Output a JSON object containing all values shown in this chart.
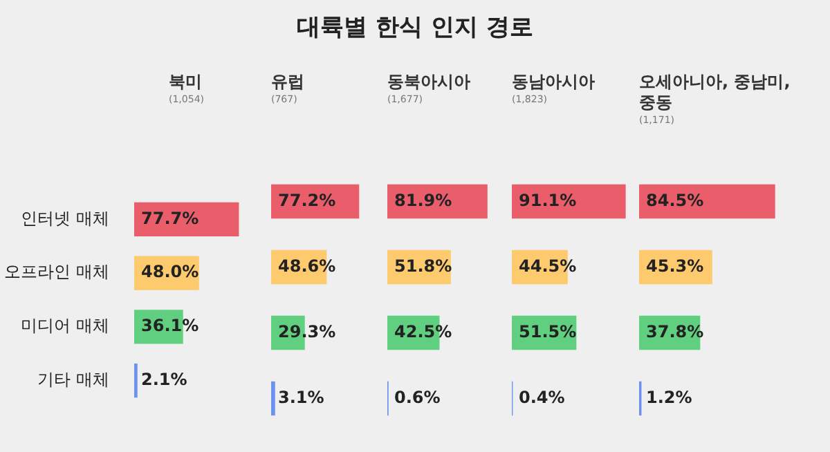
{
  "chart_data": [
    {
      "type": "bar",
      "orientation": "horizontal",
      "title": "북미",
      "subtitle": "(1,054)",
      "annotations": [
        "대륙별 한식 인지 경로"
      ],
      "categories": [
        "인터넷 매체",
        "오프라인 매체",
        "미디어 매체",
        "기타 매체"
      ],
      "values": [
        77.7,
        48.0,
        36.1,
        2.1
      ],
      "value_labels": [
        "77.7%",
        "48.0%",
        "36.1%",
        "2.1%"
      ],
      "colors": [
        "#ea5d6b",
        "#fdca6d",
        "#61cf80",
        "#6d91ef"
      ],
      "tick_labels": "y"
    },
    {
      "type": "bar",
      "orientation": "horizontal",
      "title": "유럽",
      "subtitle": "(767)",
      "categories": [
        null,
        null,
        null,
        null
      ],
      "values": [
        77.2,
        48.6,
        29.3,
        3.1
      ],
      "value_labels": [
        "77.2%",
        "48.6%",
        "29.3%",
        "3.1%"
      ],
      "colors": [
        "#ea5d6b",
        "#fdca6d",
        "#61cf80",
        "#6d91ef"
      ],
      "tick_labels": false
    },
    {
      "type": "bar",
      "orientation": "horizontal",
      "title": "동북아시아",
      "subtitle": "(1,677)",
      "categories": [
        null,
        null,
        null,
        null
      ],
      "values": [
        81.9,
        51.8,
        42.5,
        0.6
      ],
      "value_labels": [
        "81.9%",
        "51.8%",
        "42.5%",
        "0.6%"
      ],
      "colors": [
        "#ea5d6b",
        "#fdca6d",
        "#61cf80",
        "#6d91ef"
      ],
      "tick_labels": false
    },
    {
      "type": "bar",
      "orientation": "horizontal",
      "title": "동남아시아",
      "subtitle": "(1,823)",
      "categories": [
        null,
        null,
        null,
        null
      ],
      "values": [
        91.1,
        44.5,
        51.5,
        0.4
      ],
      "value_labels": [
        "91.1%",
        "44.5%",
        "51.5%",
        "0.4%"
      ],
      "colors": [
        "#ea5d6b",
        "#fdca6d",
        "#61cf80",
        "#6d91ef"
      ],
      "tick_labels": false
    },
    {
      "type": "bar",
      "orientation": "horizontal",
      "title": "오세아니아, 중남미, 중동",
      "subtitle": "(1,171)",
      "categories": [
        null,
        null,
        null,
        null
      ],
      "values": [
        84.5,
        45.3,
        37.8,
        1.2
      ],
      "value_labels": [
        "84.5%",
        "45.3%",
        "37.8%",
        "1.2%"
      ],
      "colors": [
        "#ea5d6b",
        "#fdca6d",
        "#61cf80",
        "#6d91ef"
      ],
      "tick_labels": false
    }
  ]
}
